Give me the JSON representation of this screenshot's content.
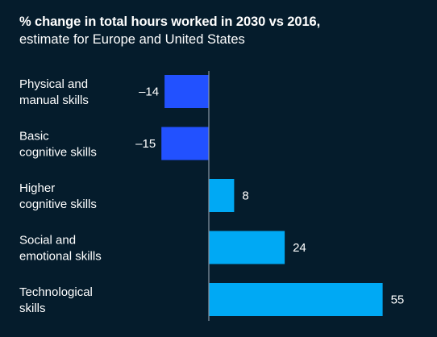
{
  "chart_data": {
    "type": "bar",
    "orientation": "horizontal",
    "title": "% change in total hours worked in 2030 vs 2016,",
    "subtitle": "estimate for Europe and United States",
    "categories": [
      [
        "Physical and",
        "manual skills"
      ],
      [
        "Basic",
        "cognitive skills"
      ],
      [
        "Higher",
        "cognitive skills"
      ],
      [
        "Social and",
        "emotional skills"
      ],
      [
        "Technological",
        "skills"
      ]
    ],
    "values": [
      -14,
      -15,
      8,
      24,
      55
    ],
    "value_labels": [
      "–14",
      "–15",
      "8",
      "24",
      "55"
    ],
    "xlim": [
      -15,
      55
    ],
    "grid": false,
    "colors": {
      "background": "#051c2c",
      "negative": "#2251ff",
      "positive": "#00a9f4",
      "axis": "#8a96a3",
      "text": "#ffffff"
    }
  }
}
